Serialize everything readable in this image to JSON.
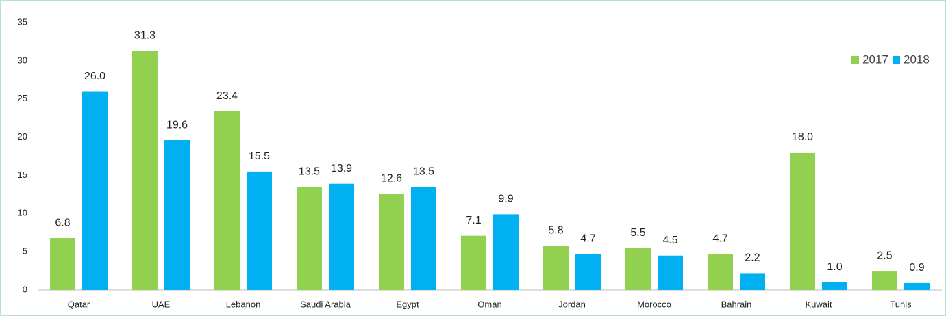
{
  "chart_data": {
    "type": "bar",
    "categories": [
      "Qatar",
      "UAE",
      "Lebanon",
      "Saudi Arabia",
      "Egypt",
      "Oman",
      "Jordan",
      "Morocco",
      "Bahrain",
      "Kuwait",
      "Tunis"
    ],
    "series": [
      {
        "name": "2017",
        "color": "#92d050",
        "values": [
          6.8,
          31.3,
          23.4,
          13.5,
          12.6,
          7.1,
          5.8,
          5.5,
          4.7,
          18,
          2.5
        ],
        "value_labels": [
          "6.8",
          "31.3",
          "23.4",
          "13.5",
          "12.6",
          "7.1",
          "5.8",
          "5.5",
          "4.7",
          "18.0",
          "2.5"
        ]
      },
      {
        "name": "2018",
        "color": "#00b0f0",
        "values": [
          26,
          19.6,
          15.5,
          13.9,
          13.5,
          9.9,
          4.7,
          4.5,
          2.2,
          1,
          0.9
        ],
        "value_labels": [
          "26.0",
          "19.6",
          "15.5",
          "13.9",
          "13.5",
          "9.9",
          "4.7",
          "4.5",
          "2.2",
          "1.0",
          "0.9"
        ]
      }
    ],
    "ylim": [
      0,
      35
    ],
    "yticks": [
      0,
      5,
      10,
      15,
      20,
      25,
      30,
      35
    ],
    "legend": "top-right"
  }
}
